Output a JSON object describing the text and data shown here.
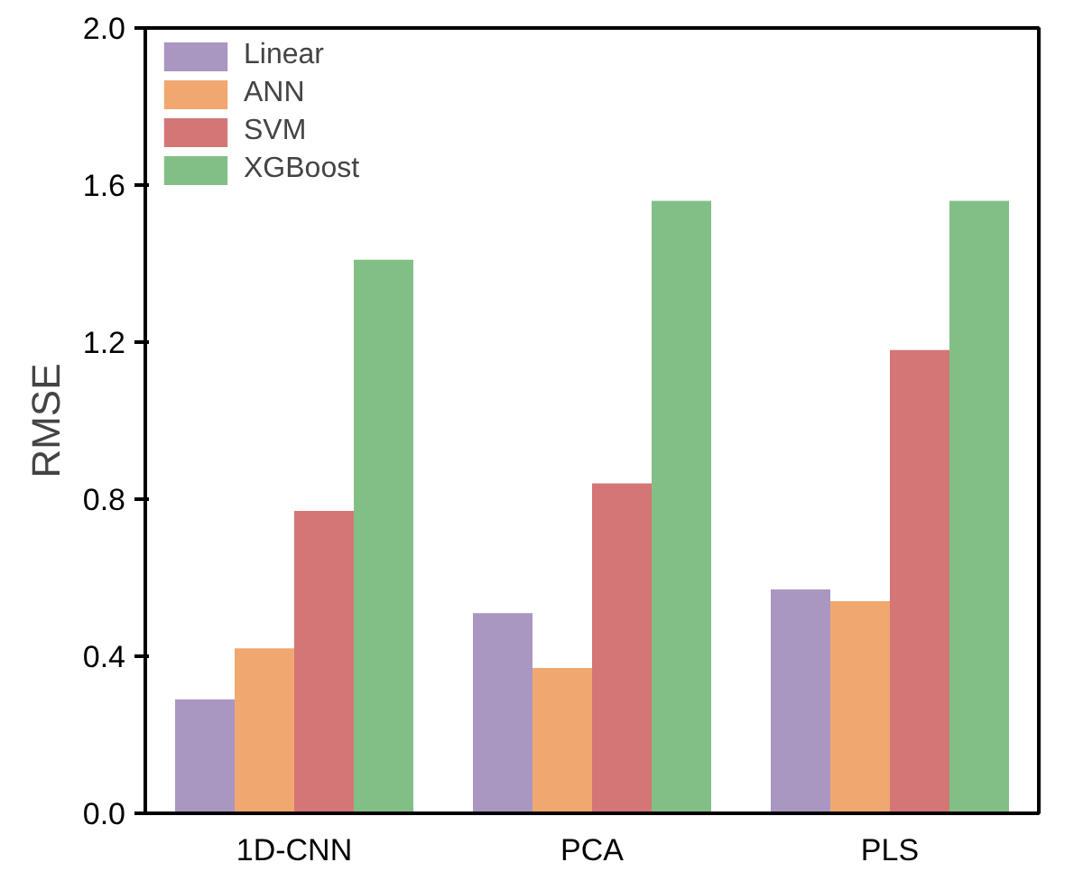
{
  "chart_data": {
    "type": "bar",
    "ylabel": "RMSE",
    "categories": [
      "1D-CNN",
      "PCA",
      "PLS"
    ],
    "series": [
      {
        "name": "Linear",
        "color": "#a996c1",
        "values": [
          0.29,
          0.51,
          0.57
        ]
      },
      {
        "name": "ANN",
        "color": "#f0a870",
        "values": [
          0.42,
          0.37,
          0.54
        ]
      },
      {
        "name": "SVM",
        "color": "#d47676",
        "values": [
          0.77,
          0.84,
          1.18
        ]
      },
      {
        "name": "XGBoost",
        "color": "#82bf86",
        "values": [
          1.41,
          1.56,
          1.56
        ]
      }
    ],
    "ylim": [
      0,
      2.0
    ],
    "yticks": [
      {
        "value": 0,
        "label": "0.0"
      },
      0.4,
      0.8,
      1.2,
      1.6,
      {
        "value": 2.0,
        "label": "2.0"
      }
    ],
    "grid": false,
    "legend": "top left"
  }
}
